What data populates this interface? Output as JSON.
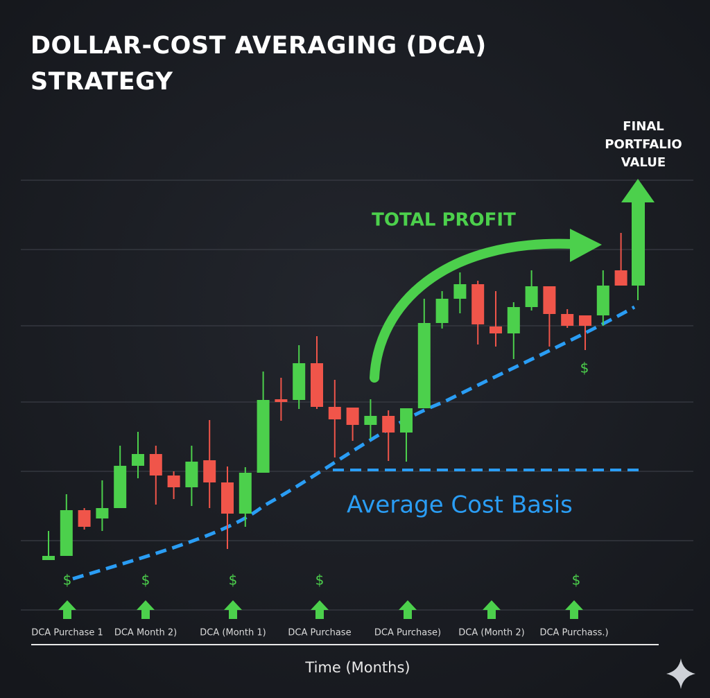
{
  "chart_data": {
    "type": "candlestick",
    "title": "DOLLAR-COST AVERAGING (DCA) STRATEGY",
    "x_label": "Time (Months)",
    "ylim": [
      0,
      624
    ],
    "grid_lines": [
      0,
      100,
      200,
      300,
      410,
      520,
      620
    ],
    "up_color": "#4cd04c",
    "down_color": "#f0554a",
    "series": {
      "open": [
        72,
        78,
        144,
        132,
        147,
        208,
        225,
        194,
        177,
        216,
        184,
        139,
        198,
        304,
        303,
        356,
        293,
        292,
        267,
        280,
        256,
        291,
        414,
        449,
        470,
        409,
        399,
        437,
        467,
        427,
        425,
        425,
        490
      ],
      "high": [
        114,
        167,
        147,
        187,
        237,
        257,
        237,
        200,
        237,
        274,
        207,
        206,
        344,
        335,
        382,
        395,
        332,
        292,
        304,
        288,
        291,
        449,
        460,
        487,
        475,
        460,
        444,
        490,
        467,
        434,
        425,
        490,
        544
      ],
      "low": [
        72,
        78,
        116,
        114,
        147,
        190,
        152,
        160,
        150,
        147,
        88,
        120,
        198,
        273,
        290,
        290,
        220,
        244,
        247,
        215,
        214,
        291,
        406,
        428,
        383,
        380,
        362,
        432,
        380,
        407,
        375,
        410,
        468
      ],
      "close": [
        78,
        144,
        120,
        147,
        208,
        225,
        194,
        177,
        214,
        184,
        139,
        198,
        303,
        300,
        356,
        293,
        275,
        267,
        280,
        256,
        291,
        414,
        449,
        470,
        412,
        399,
        437,
        467,
        427,
        410,
        410,
        468,
        468
      ]
    },
    "cost_basis": 202,
    "cost_basis_label": "Average Cost Basis",
    "cost_basis_color": "#2a9df4",
    "profit_label": "TOTAL PROFIT",
    "final_label": "FINAL PORTFALIO VALUE",
    "purchase_marker": "$",
    "purchase_labels": [
      "DCA Purchase 1",
      "DCA Month 2)",
      "DCA (Month 1)",
      "DCA Purchase",
      "DCA Purchase)",
      "DCA (Month 2)",
      "DCA Purchass.)"
    ]
  }
}
